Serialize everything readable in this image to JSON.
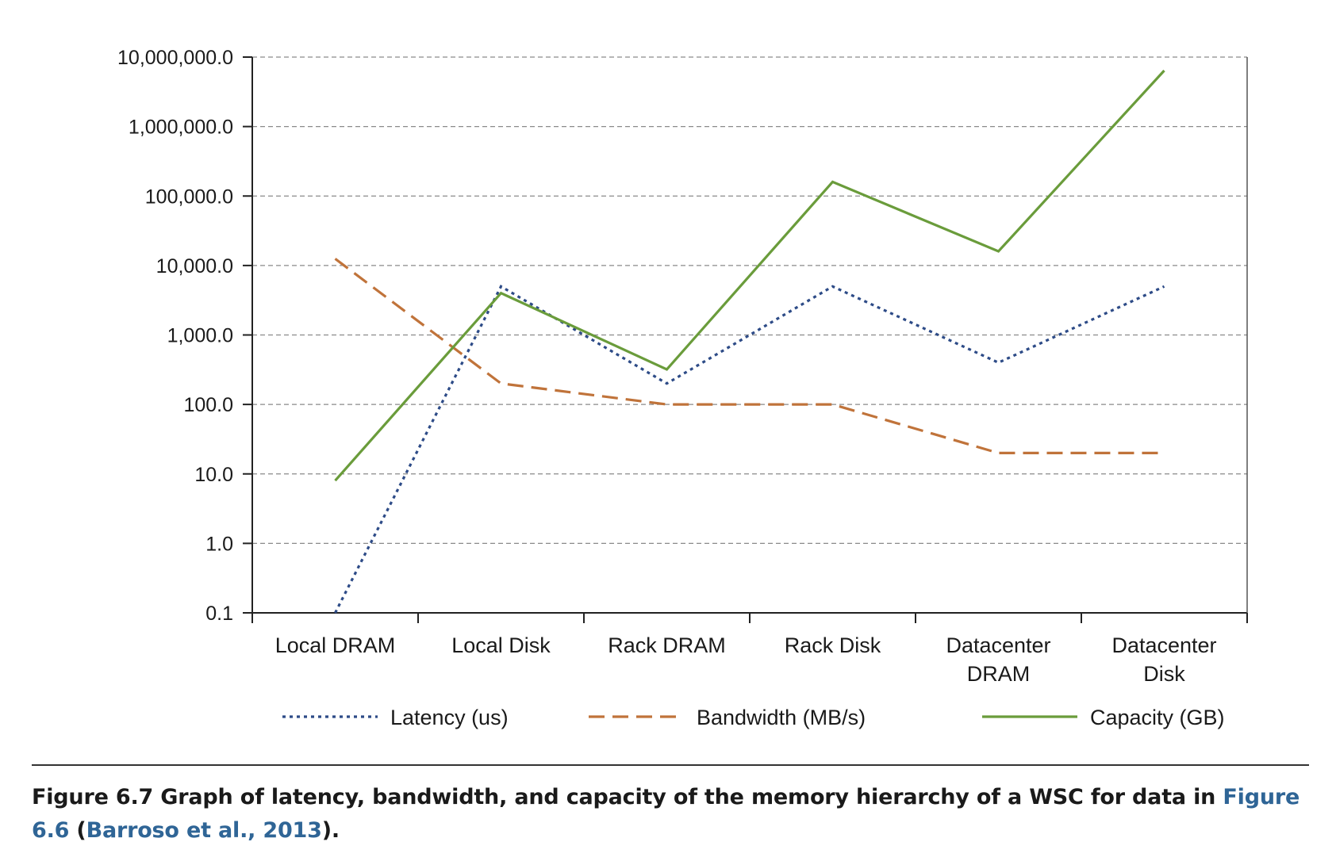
{
  "chart_data": {
    "type": "line",
    "yscale": "log",
    "ylim": [
      0.1,
      10000000
    ],
    "y_ticks": [
      0.1,
      1,
      10,
      100,
      1000,
      10000,
      100000,
      1000000,
      10000000
    ],
    "y_tick_labels": [
      "0.1",
      "1.0",
      "10.0",
      "100.0",
      "1,000.0",
      "10,000.0",
      "100,000.0",
      "1,000,000.0",
      "10,000,000.0"
    ],
    "grid": "horizontal dashed",
    "legend_position": "bottom",
    "categories": [
      [
        "Local DRAM"
      ],
      [
        "Local Disk"
      ],
      [
        "Rack DRAM"
      ],
      [
        "Rack Disk"
      ],
      [
        "Datacenter",
        "DRAM"
      ],
      [
        "Datacenter",
        "Disk"
      ]
    ],
    "series": [
      {
        "name": "Latency (us)",
        "values": [
          0.1,
          5000,
          200,
          5000,
          400,
          5000
        ],
        "color": "#2d4b87",
        "style": "dotted"
      },
      {
        "name": "Bandwidth (MB/s)",
        "values": [
          12500,
          200,
          100,
          100,
          20,
          20
        ],
        "color": "#c0733a",
        "style": "dashed"
      },
      {
        "name": "Capacity (GB)",
        "values": [
          8,
          4000,
          320,
          160000,
          16000,
          6400000
        ],
        "color": "#6a9c3b",
        "style": "solid"
      }
    ]
  },
  "caption": {
    "prefix": "Figure 6.7  Graph of latency, bandwidth, and capacity of the memory hierarchy of a WSC for data in ",
    "link1": "Figure 6.6",
    "mid": " (",
    "link2": "Barroso et al., 2013",
    "suffix": ")."
  }
}
